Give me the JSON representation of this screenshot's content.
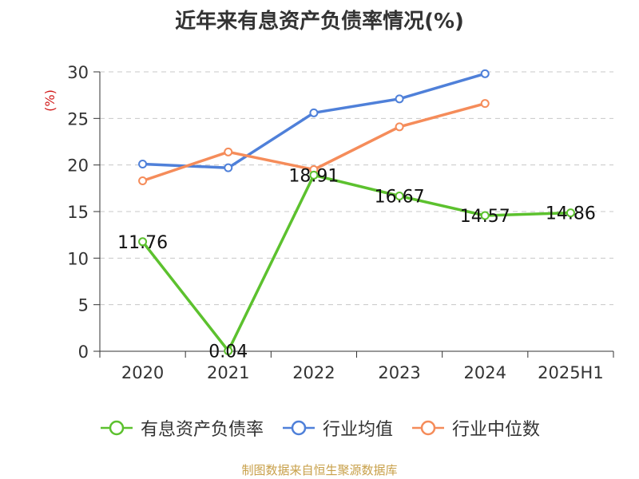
{
  "title": "近年来有息资产负债率情况(%)",
  "source": "制图数据来自恒生聚源数据库",
  "colors": {
    "series_green": "#5cc12e",
    "series_blue": "#4f80d9",
    "series_orange": "#f58c5a",
    "ylabel": "#d11a1a",
    "grid": "#c8c8c8",
    "axis": "#333333",
    "source": "#c8a04a"
  },
  "chart_data": {
    "type": "line",
    "ylabel": "(%)",
    "xlabel": "",
    "ylim": [
      0,
      30
    ],
    "yticks": [
      0,
      5,
      10,
      15,
      20,
      25,
      30
    ],
    "grid": true,
    "legend_position": "bottom",
    "categories": [
      "2020",
      "2021",
      "2022",
      "2023",
      "2024",
      "2025H1"
    ],
    "series": [
      {
        "name": "有息资产负债率",
        "color_key": "series_green",
        "values": [
          11.76,
          0.04,
          18.91,
          16.67,
          14.57,
          14.86
        ],
        "data_labels": [
          "11.76",
          "0.04",
          "18.91",
          "16.67",
          "14.57",
          "14.86"
        ]
      },
      {
        "name": "行业均值",
        "color_key": "series_blue",
        "values": [
          20.1,
          19.7,
          25.6,
          27.1,
          29.8,
          null
        ],
        "data_labels": []
      },
      {
        "name": "行业中位数",
        "color_key": "series_orange",
        "values": [
          18.3,
          21.4,
          19.5,
          24.1,
          26.6,
          null
        ],
        "data_labels": []
      }
    ]
  }
}
